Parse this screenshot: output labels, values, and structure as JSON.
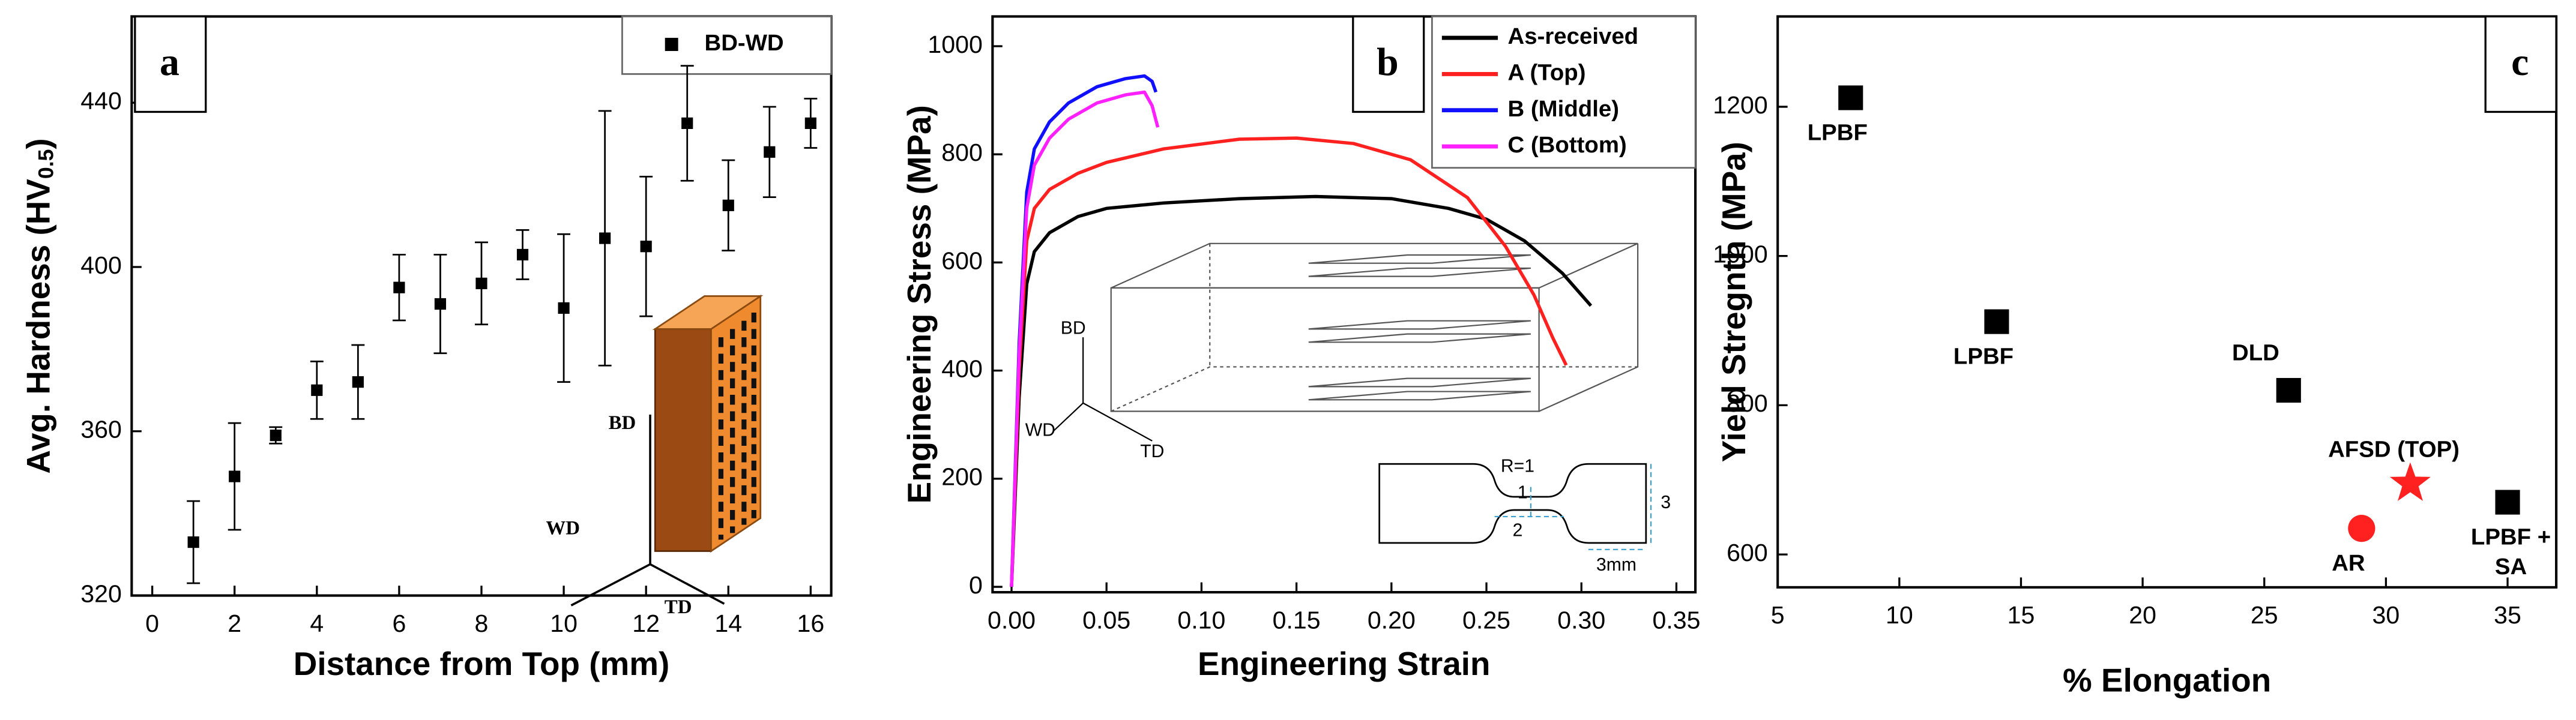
{
  "chart_data": [
    {
      "type": "scatter",
      "panel_label": "a",
      "xlabel": "Distance from Top (mm)",
      "ylabel": [
        "Avg. Hardness (HV",
        "0.5",
        ")"
      ],
      "xlim": [
        -0.5,
        16.5
      ],
      "ylim": [
        320,
        461
      ],
      "xticks": [
        0,
        2,
        4,
        6,
        8,
        10,
        12,
        14,
        16
      ],
      "yticks": [
        320,
        360,
        400,
        440
      ],
      "legend": "upper right",
      "series": [
        {
          "name": "BD-WD",
          "color": "#000000",
          "marker": "square",
          "x": [
            1,
            2,
            3,
            4,
            5,
            6,
            7,
            8,
            9,
            10,
            11,
            12,
            13,
            14,
            15,
            16
          ],
          "values": [
            333,
            349,
            359,
            370,
            372,
            395,
            391,
            396,
            403,
            390,
            407,
            405,
            435,
            415,
            428,
            435
          ],
          "errors": [
            10,
            13,
            2,
            7,
            9,
            8,
            12,
            10,
            6,
            18,
            31,
            17,
            14,
            11,
            11,
            6
          ]
        }
      ],
      "inset_labels": [
        "BD",
        "WD",
        "TD"
      ]
    },
    {
      "type": "line",
      "panel_label": "b",
      "xlabel": "Engineering Strain",
      "ylabel": "Engineering Stress (MPa)",
      "xlim": [
        -0.01,
        0.36
      ],
      "ylim": [
        -10,
        1055
      ],
      "xticks": [
        {
          "value": 0,
          "label": "0.00"
        },
        0.05,
        {
          "value": 0.1,
          "label": "0.10"
        },
        0.15,
        {
          "value": 0.2,
          "label": "0.20"
        },
        0.25,
        {
          "value": 0.3,
          "label": "0.30"
        },
        0.35
      ],
      "yticks": [
        0,
        200,
        400,
        600,
        800,
        1000
      ],
      "legend": "upper right",
      "series": [
        {
          "name": "As-received",
          "color": "#000000",
          "x": [
            0,
            0.004,
            0.008,
            0.012,
            0.02,
            0.035,
            0.05,
            0.08,
            0.12,
            0.16,
            0.2,
            0.23,
            0.25,
            0.27,
            0.29,
            0.305
          ],
          "values": [
            0,
            350,
            560,
            620,
            655,
            685,
            700,
            710,
            718,
            722,
            718,
            700,
            680,
            640,
            580,
            520
          ]
        },
        {
          "name": "A (Top)",
          "color": "#ff2020",
          "x": [
            0,
            0.004,
            0.008,
            0.012,
            0.02,
            0.035,
            0.05,
            0.08,
            0.12,
            0.15,
            0.18,
            0.21,
            0.24,
            0.26,
            0.275,
            0.285,
            0.292
          ],
          "values": [
            0,
            400,
            640,
            700,
            735,
            765,
            785,
            810,
            828,
            830,
            820,
            790,
            720,
            630,
            540,
            460,
            410
          ]
        },
        {
          "name": "B (Middle)",
          "color": "#1010ff",
          "x": [
            0,
            0.004,
            0.008,
            0.012,
            0.02,
            0.03,
            0.045,
            0.06,
            0.07,
            0.074,
            0.076
          ],
          "values": [
            0,
            450,
            730,
            810,
            860,
            895,
            925,
            940,
            945,
            935,
            915
          ]
        },
        {
          "name": "C (Bottom)",
          "color": "#ff20ff",
          "x": [
            0,
            0.004,
            0.008,
            0.012,
            0.02,
            0.03,
            0.045,
            0.06,
            0.07,
            0.074,
            0.077
          ],
          "values": [
            0,
            430,
            700,
            780,
            830,
            865,
            895,
            910,
            915,
            890,
            850
          ]
        }
      ],
      "inset_labels": [
        "BD",
        "WD",
        "TD",
        "R=1",
        "1",
        "2",
        "3",
        "3mm"
      ]
    },
    {
      "type": "scatter",
      "panel_label": "c",
      "xlabel": "% Elongation",
      "ylabel": "Yield Stregnth (MPa)",
      "xlim": [
        5,
        37
      ],
      "ylim": [
        556,
        1321
      ],
      "xticks": [
        5,
        10,
        15,
        20,
        25,
        30,
        35
      ],
      "yticks": [
        600,
        800,
        1000,
        1200
      ],
      "points": [
        {
          "x": 8,
          "y": 1212,
          "label": [
            "LPBF"
          ],
          "marker": "square",
          "color": "#000000"
        },
        {
          "x": 14,
          "y": 912,
          "label": [
            "LPBF"
          ],
          "marker": "square",
          "color": "#000000"
        },
        {
          "x": 26,
          "y": 820,
          "label": [
            "DLD"
          ],
          "marker": "square",
          "color": "#000000"
        },
        {
          "x": 35,
          "y": 670,
          "label": [
            "LPBF +",
            "SA"
          ],
          "marker": "square",
          "color": "#000000"
        },
        {
          "x": 29,
          "y": 635,
          "label": [
            "AR"
          ],
          "marker": "circle",
          "color": "#ff2020"
        },
        {
          "x": 31,
          "y": 695,
          "label": [
            "AFSD (TOP)"
          ],
          "marker": "star",
          "color": "#ff2020"
        }
      ]
    }
  ]
}
